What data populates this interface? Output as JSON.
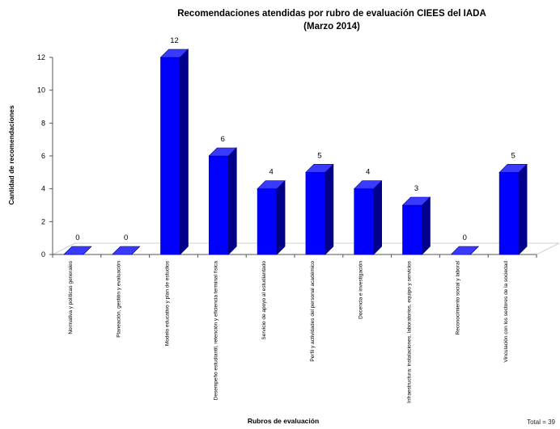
{
  "chart_data": {
    "type": "bar",
    "title": "Recomendaciones atendidas por rubro de evaluación CIEES del IADA",
    "subtitle": "(Marzo 2014)",
    "xlabel": "Rubros de evaluación",
    "ylabel": "Cantidad de recomendaciones",
    "ylim": [
      0,
      12
    ],
    "yticks": [
      0,
      2,
      4,
      6,
      8,
      10,
      12
    ],
    "grid": false,
    "categories": [
      "Normativa y políticas generales",
      "Planeación, gestión y evaluación",
      "Modelo educativo y plan de estudios",
      "Desempeño estudiantil, retención y eficiencia terminal física",
      "Servicio de apoyo al estudiantado",
      "Perfil y actividades del personal académico",
      "Docencia e investigación",
      "Infraestructura: instalaciones, laboratorios, equipo y servicios",
      "Reconocimiento social y laboral",
      "Vinculación con los sectores de la sociedad"
    ],
    "values": [
      0,
      0,
      12,
      6,
      4,
      5,
      4,
      3,
      0,
      5
    ],
    "data_labels": [
      "0",
      "0",
      "12",
      "6",
      "4",
      "5",
      "4",
      "3",
      "0",
      "5"
    ],
    "bar_color": "#0000ff",
    "total_label": "Total = 39"
  }
}
